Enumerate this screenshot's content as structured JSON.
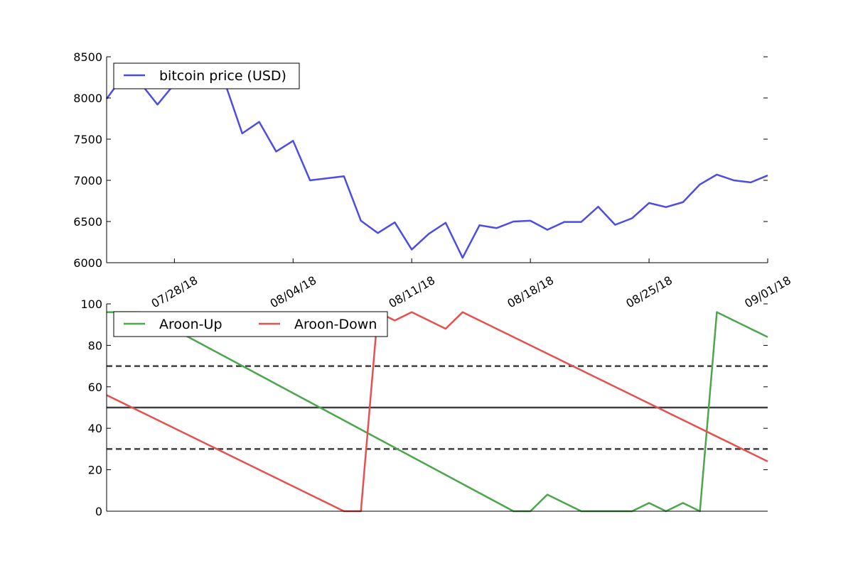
{
  "chart_data": [
    {
      "type": "line",
      "series": [
        {
          "name": "bitcoin price (USD)",
          "color": "#4c4ce6",
          "x": [
            "07/24/18",
            "07/25/18",
            "07/26/18",
            "07/27/18",
            "07/28/18",
            "07/29/18",
            "07/30/18",
            "07/31/18",
            "08/01/18",
            "08/02/18",
            "08/03/18",
            "08/04/18",
            "08/05/18",
            "08/06/18",
            "08/07/18",
            "08/08/18",
            "08/09/18",
            "08/10/18",
            "08/11/18",
            "08/12/18",
            "08/13/18",
            "08/14/18",
            "08/15/18",
            "08/16/18",
            "08/17/18",
            "08/18/18",
            "08/19/18",
            "08/20/18",
            "08/21/18",
            "08/22/18",
            "08/23/18",
            "08/24/18",
            "08/25/18",
            "08/26/18",
            "08/27/18",
            "08/28/18",
            "08/29/18",
            "08/30/18",
            "08/31/18",
            "09/01/18"
          ],
          "values": [
            7990,
            8270,
            8180,
            7920,
            8170,
            8220,
            8200,
            8170,
            7570,
            7710,
            7350,
            7480,
            7000,
            7025,
            7050,
            6510,
            6360,
            6490,
            6160,
            6350,
            6485,
            6060,
            6455,
            6420,
            6500,
            6510,
            6400,
            6495,
            6495,
            6680,
            6460,
            6540,
            6725,
            6675,
            6735,
            6950,
            7070,
            7000,
            6975,
            7060
          ]
        }
      ],
      "yticks": [
        "6000",
        "6500",
        "7000",
        "7500",
        "8000",
        "8500"
      ],
      "xticks": [
        "07/28/18",
        "08/04/18",
        "08/11/18",
        "08/18/18",
        "08/25/18",
        "09/01/18"
      ],
      "ylim": [
        6000,
        8500
      ],
      "legend": "upper-left",
      "grid": false
    },
    {
      "type": "line",
      "series": [
        {
          "name": "Aroon-Up",
          "color": "#4ca64c",
          "x": [
            "07/24/18",
            "07/25/18",
            "07/26/18",
            "07/27/18",
            "08/17/18",
            "08/18/18",
            "08/19/18",
            "08/20/18",
            "08/21/18",
            "08/22/18",
            "08/23/18",
            "08/24/18",
            "08/25/18",
            "08/26/18",
            "08/27/18",
            "08/28/18",
            "08/29/18",
            "09/01/18"
          ],
          "values": [
            96,
            96,
            96,
            92,
            0,
            0,
            8,
            4,
            0,
            0,
            0,
            0,
            4,
            0,
            4,
            0,
            96,
            84
          ]
        },
        {
          "name": "Aroon-Down",
          "color": "#e65050",
          "x": [
            "07/24/18",
            "08/07/18",
            "08/08/18",
            "08/09/18",
            "08/10/18",
            "08/11/18",
            "08/13/18",
            "08/14/18",
            "09/01/18"
          ],
          "values": [
            56,
            0,
            0,
            96,
            92,
            96,
            88,
            96,
            24
          ]
        }
      ],
      "reference_lines": [
        {
          "y": 70,
          "style": "dashed"
        },
        {
          "y": 50,
          "style": "solid"
        },
        {
          "y": 30,
          "style": "dashed"
        }
      ],
      "yticks": [
        "0",
        "20",
        "40",
        "60",
        "80",
        "100"
      ],
      "ylim": [
        0,
        100
      ],
      "legend": "upper-left",
      "grid": false
    }
  ]
}
